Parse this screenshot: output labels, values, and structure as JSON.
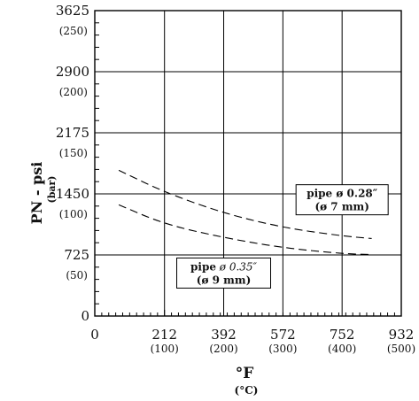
{
  "chart_data": {
    "type": "line",
    "xlabel": "°F",
    "xlabel_sub": "(°C)",
    "ylabel": "PN - psi",
    "ylabel_sub": "(bar)",
    "xlim": [
      0,
      932
    ],
    "ylim": [
      0,
      3625
    ],
    "x_ticks": [
      {
        "value": 0,
        "label": "0",
        "sublabel": ""
      },
      {
        "value": 212,
        "label": "212",
        "sublabel": "(100)"
      },
      {
        "value": 392,
        "label": "392",
        "sublabel": "(200)"
      },
      {
        "value": 572,
        "label": "572",
        "sublabel": "(300)"
      },
      {
        "value": 752,
        "label": "752",
        "sublabel": "(400)"
      },
      {
        "value": 932,
        "label": "932",
        "sublabel": "(500)"
      }
    ],
    "y_ticks": [
      {
        "value": 0,
        "label": "0",
        "sublabel": ""
      },
      {
        "value": 725,
        "label": "725",
        "sublabel": "(50)"
      },
      {
        "value": 1450,
        "label": "1450",
        "sublabel": "(100)"
      },
      {
        "value": 2175,
        "label": "2175",
        "sublabel": "(150)"
      },
      {
        "value": 2900,
        "label": "2900",
        "sublabel": "(200)"
      },
      {
        "value": 3625,
        "label": "3625",
        "sublabel": "(250)"
      }
    ],
    "grid": true,
    "series": [
      {
        "x": [
          73,
          212,
          392,
          572,
          752,
          842
        ],
        "y": [
          1730,
          1470,
          1220,
          1050,
          950,
          920
        ]
      },
      {
        "x": [
          73,
          212,
          392,
          572,
          752,
          842
        ],
        "y": [
          1320,
          1090,
          930,
          810,
          740,
          730
        ]
      }
    ],
    "annotations": [
      {
        "text_bold": "pipe ø 0.28″",
        "text_sub": "(ø 7 mm)",
        "at": {
          "x": 752,
          "y": 1380
        }
      },
      {
        "text_bold": "pipe",
        "text_italic": "ø 0.35″",
        "text_sub": "(ø 9 mm)",
        "at": {
          "x": 392,
          "y": 510
        }
      }
    ]
  }
}
